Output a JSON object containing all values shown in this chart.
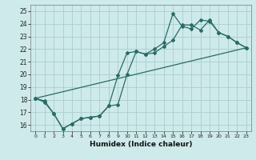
{
  "xlabel": "Humidex (Indice chaleur)",
  "bg_color": "#ceeaea",
  "grid_color": "#aacece",
  "line_color": "#2a6b65",
  "xlim": [
    -0.5,
    23.5
  ],
  "ylim": [
    15.5,
    25.5
  ],
  "xticks": [
    0,
    1,
    2,
    3,
    4,
    5,
    6,
    7,
    8,
    9,
    10,
    11,
    12,
    13,
    14,
    15,
    16,
    17,
    18,
    19,
    20,
    21,
    22,
    23
  ],
  "yticks": [
    16,
    17,
    18,
    19,
    20,
    21,
    22,
    23,
    24,
    25
  ],
  "series1_x": [
    0,
    1,
    2,
    3,
    4,
    5,
    6,
    7,
    8,
    9,
    10,
    11,
    12,
    13,
    14,
    15,
    16,
    17,
    18,
    19,
    20,
    21,
    22,
    23
  ],
  "series1_y": [
    18.1,
    17.9,
    16.9,
    15.7,
    16.1,
    16.5,
    16.6,
    16.7,
    17.5,
    17.6,
    20.0,
    21.8,
    21.6,
    21.7,
    22.2,
    22.7,
    23.9,
    23.9,
    23.5,
    24.3,
    23.3,
    23.0,
    22.5,
    22.1
  ],
  "series2_x": [
    0,
    1,
    2,
    3,
    4,
    5,
    6,
    7,
    8,
    9,
    10,
    11,
    12,
    13,
    14,
    15,
    16,
    17,
    18,
    19,
    20,
    21,
    22,
    23
  ],
  "series2_y": [
    18.1,
    17.8,
    16.9,
    15.7,
    16.1,
    16.5,
    16.6,
    16.7,
    17.5,
    19.9,
    21.7,
    21.8,
    21.6,
    22.0,
    22.5,
    24.8,
    23.8,
    23.6,
    24.3,
    24.2,
    23.3,
    23.0,
    22.5,
    22.1
  ],
  "series3_x": [
    0,
    23
  ],
  "series3_y": [
    18.1,
    22.1
  ]
}
